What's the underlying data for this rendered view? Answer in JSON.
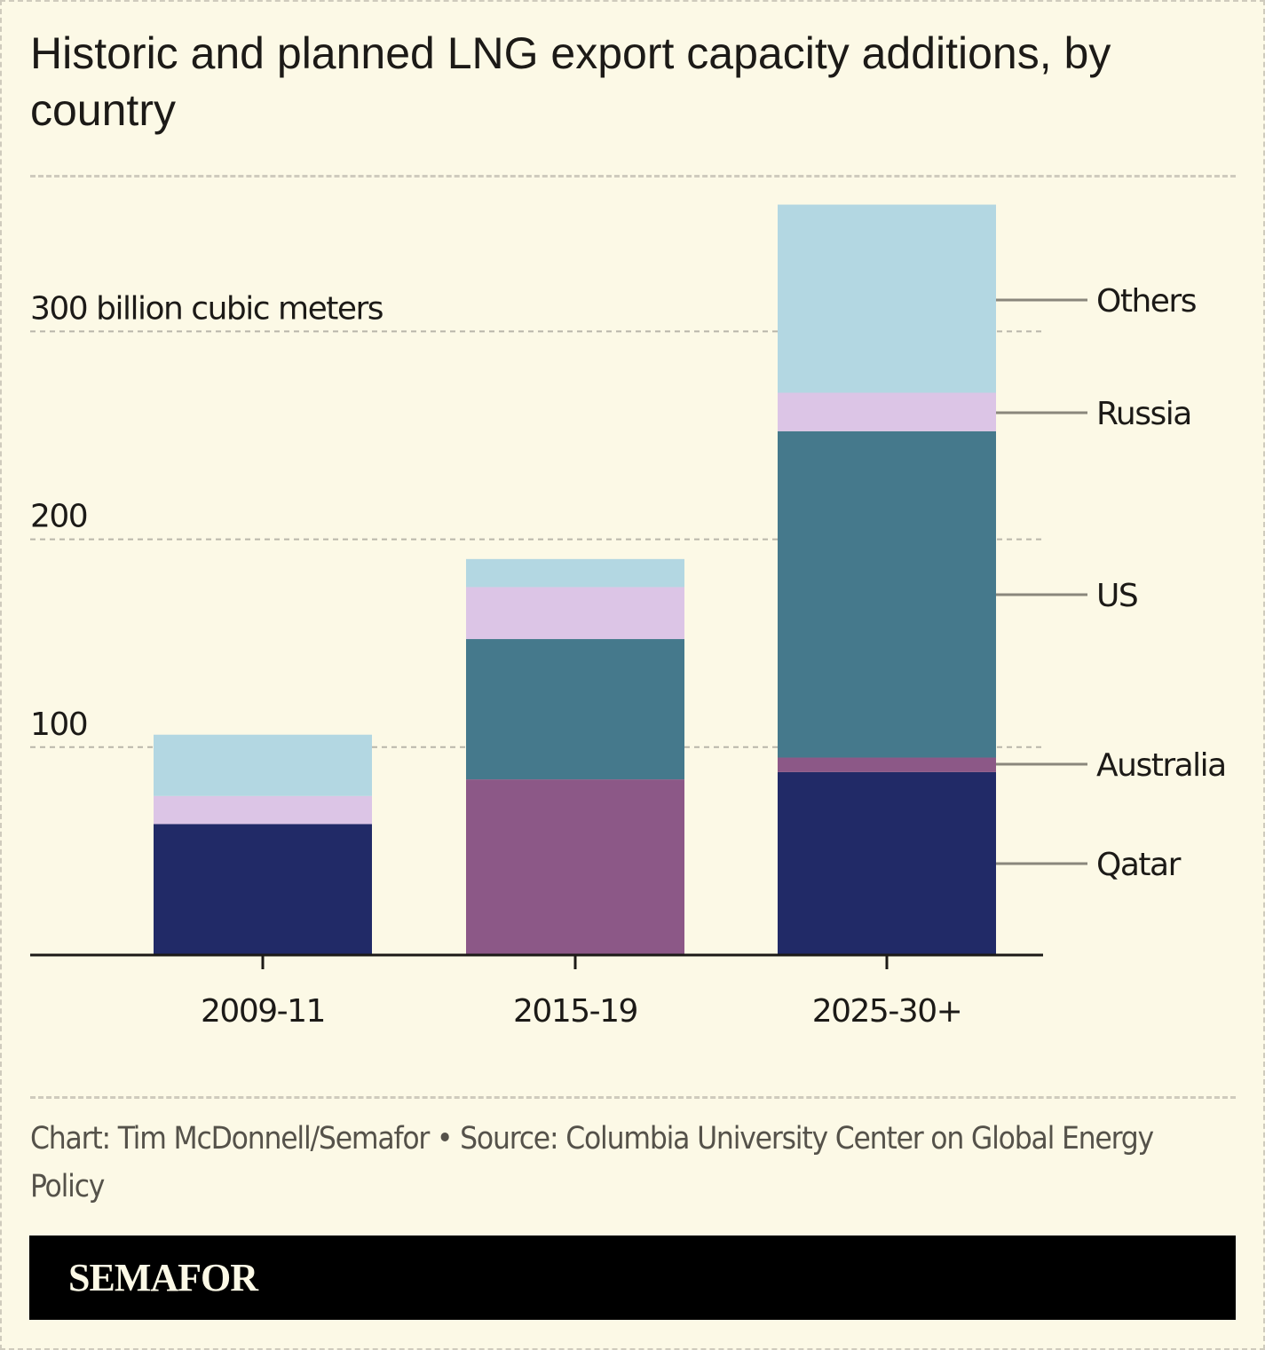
{
  "title": "Historic and planned LNG export capacity additions, by country",
  "source": "Chart: Tim McDonnell/Semafor • Source: Columbia University Center on Global Energy Policy",
  "brand": "SEMAFOR",
  "chart_data": {
    "type": "bar",
    "stacked": true,
    "title": "Historic and planned LNG export capacity additions, by country",
    "xlabel": "",
    "ylabel": "billion cubic meters",
    "ylim": [
      0,
      360
    ],
    "yticks": [
      100,
      200,
      300
    ],
    "ytick_labels": [
      "100",
      "200",
      "300 billion cubic meters"
    ],
    "grid": true,
    "legend": "right-inline",
    "categories": [
      "2009-11",
      "2015-19",
      "2025-30+"
    ],
    "series": [
      {
        "name": "Qatar",
        "color": "#212a67",
        "values": [
          63,
          0,
          88
        ]
      },
      {
        "name": "Australia",
        "color": "#8c5887",
        "values": [
          0,
          84.5,
          7
        ]
      },
      {
        "name": "US",
        "color": "#45798c",
        "values": [
          0,
          67.5,
          157
        ]
      },
      {
        "name": "Russia",
        "color": "#dcc5e6",
        "values": [
          13.5,
          25,
          18.5
        ]
      },
      {
        "name": "Others",
        "color": "#b3d7e2",
        "values": [
          29.5,
          13.5,
          90.5
        ]
      }
    ]
  }
}
